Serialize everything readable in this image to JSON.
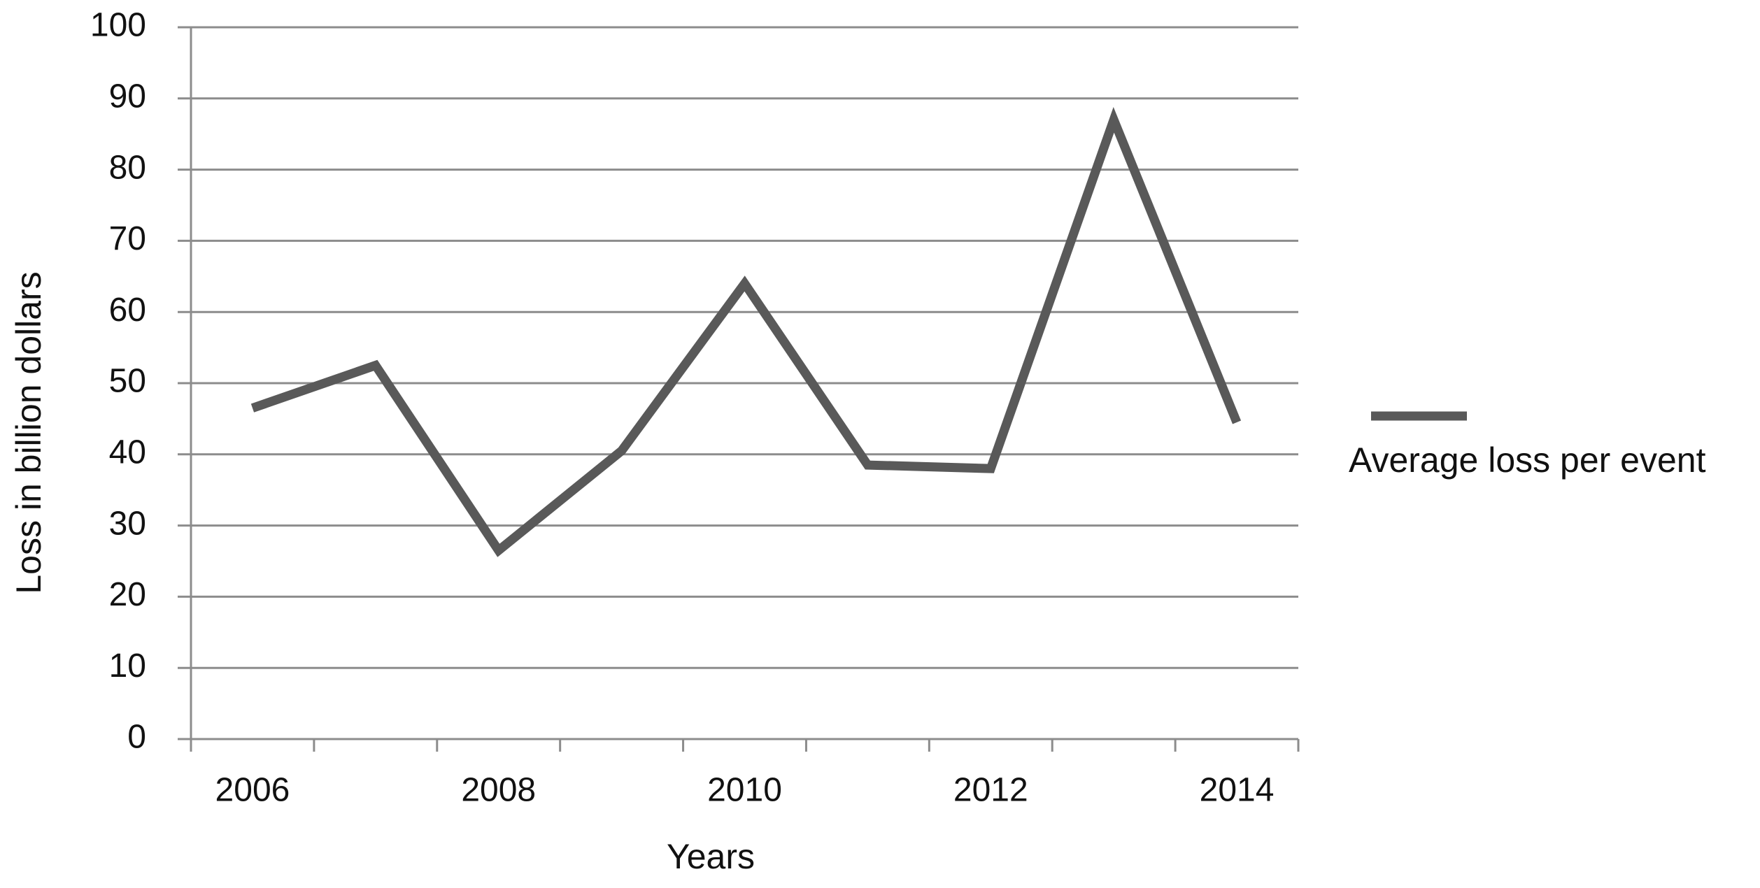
{
  "chart_data": {
    "type": "line",
    "categories": [
      "2006",
      null,
      "2008",
      null,
      "2010",
      null,
      "2012",
      null,
      "2014"
    ],
    "series": [
      {
        "name": "Average loss per event",
        "color": "#595959",
        "values": [
          46.5,
          52.5,
          26.5,
          40.5,
          64,
          38.5,
          38,
          87,
          44.5
        ]
      }
    ],
    "xlabel": "Years",
    "ylabel": "Loss in billion dollars",
    "ylim": [
      0,
      100
    ],
    "yticks": [
      0,
      10,
      20,
      30,
      40,
      50,
      60,
      70,
      80,
      90,
      100
    ],
    "grid": true,
    "legend": "right"
  }
}
